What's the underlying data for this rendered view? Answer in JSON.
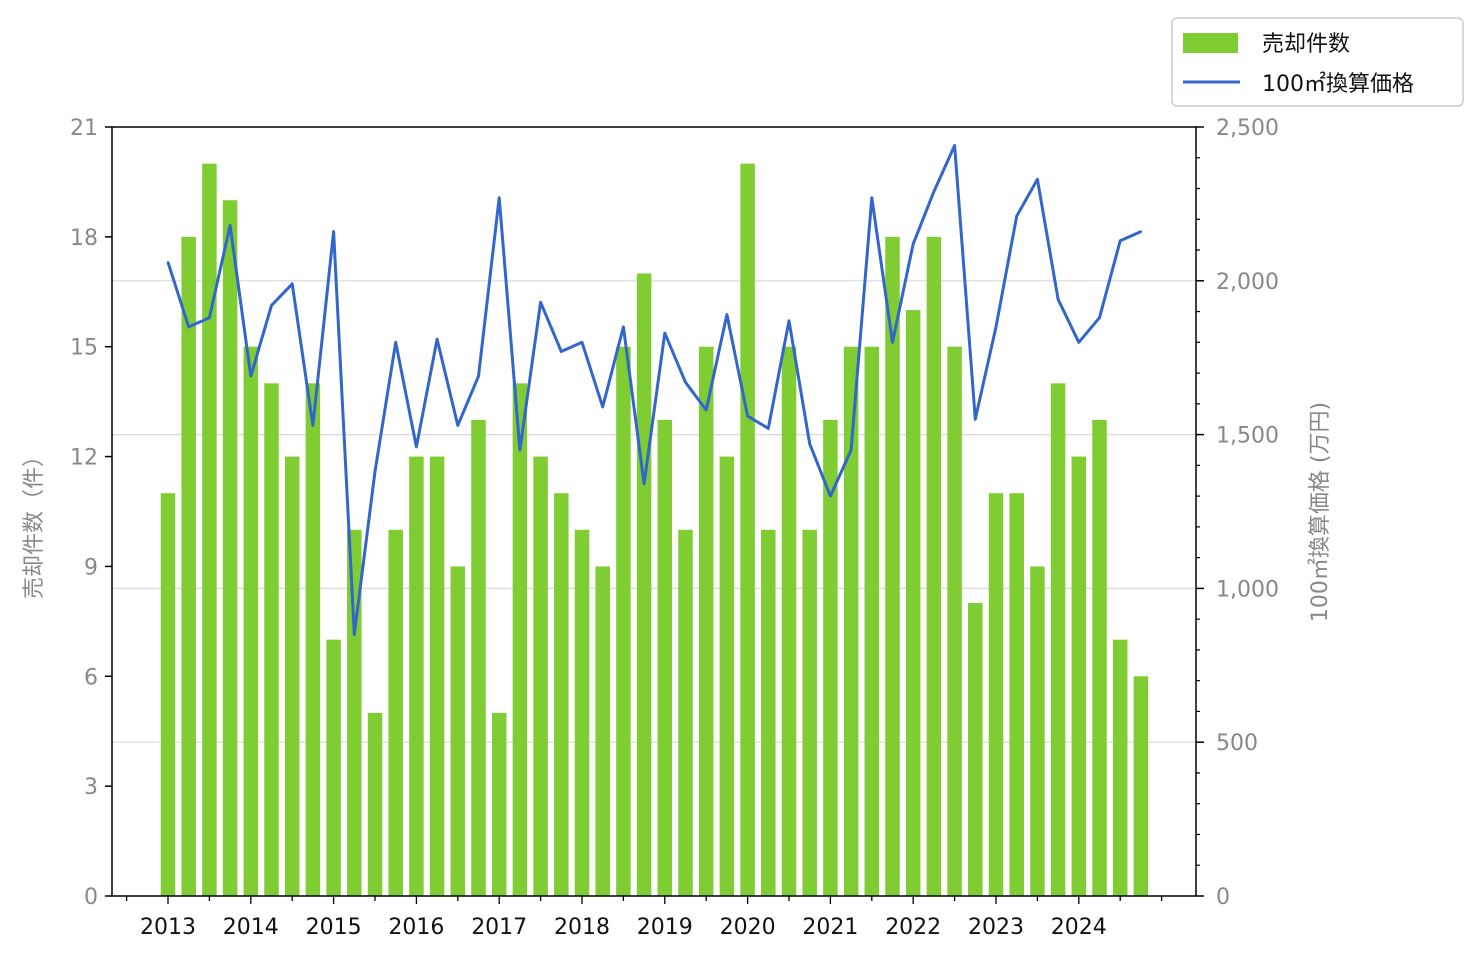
{
  "chart_data": {
    "type": "bar",
    "x_year_labels": [
      "2013",
      "2014",
      "2015",
      "2016",
      "2017",
      "2018",
      "2019",
      "2020",
      "2021",
      "2022",
      "2023",
      "2024"
    ],
    "series": [
      {
        "name": "売却件数",
        "type": "bar",
        "axis": "left",
        "color": "#80cc33",
        "values": [
          11,
          18,
          20,
          19,
          15,
          14,
          12,
          14,
          7,
          10,
          5,
          10,
          12,
          12,
          9,
          13,
          5,
          14,
          12,
          11,
          10,
          9,
          15,
          17,
          13,
          10,
          15,
          12,
          20,
          10,
          15,
          10,
          13,
          15,
          15,
          18,
          16,
          18,
          15,
          8,
          11,
          11,
          9,
          14,
          12,
          13,
          7,
          6
        ]
      },
      {
        "name": "100㎡換算価格",
        "type": "line",
        "axis": "right",
        "color": "#3366cc",
        "values": [
          2060,
          1850,
          1880,
          2180,
          1690,
          1920,
          1990,
          1530,
          2160,
          850,
          1380,
          1800,
          1460,
          1810,
          1530,
          1690,
          2270,
          1450,
          1930,
          1770,
          1800,
          1590,
          1850,
          1340,
          1830,
          1670,
          1580,
          1890,
          1560,
          1520,
          1870,
          1470,
          1300,
          1450,
          2270,
          1800,
          2120,
          2290,
          2440,
          1550,
          1850,
          2210,
          2330,
          1940,
          1800,
          1880,
          2130,
          2160
        ]
      }
    ],
    "y_left": {
      "label": "売却件数（件）",
      "min": 0,
      "max": 21,
      "ticks": [
        "0",
        "3",
        "6",
        "9",
        "12",
        "15",
        "18",
        "21"
      ]
    },
    "y_right": {
      "label": "100㎡換算価格 (万円)",
      "min": 0,
      "max": 2500,
      "ticks": [
        "0",
        "500",
        "1,000",
        "1,500",
        "2,000",
        "2,500"
      ]
    },
    "grid": "horizontal-right-axis",
    "legend": "top-right"
  }
}
